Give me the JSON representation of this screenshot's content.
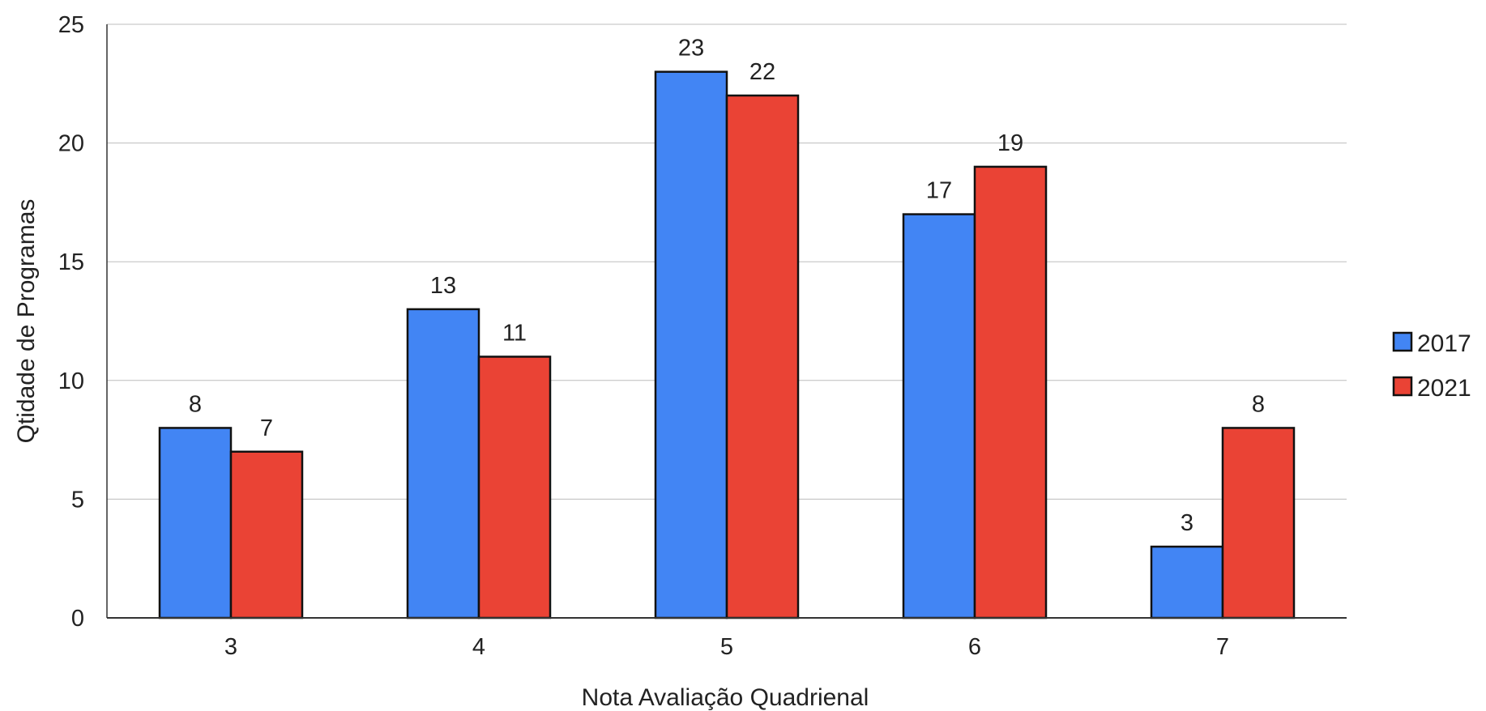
{
  "chart_data": {
    "type": "bar",
    "title": "",
    "xlabel": "Nota Avaliação Quadrienal",
    "ylabel": "Qtidade de Programas",
    "categories": [
      "3",
      "4",
      "5",
      "6",
      "7"
    ],
    "series": [
      {
        "name": "2017",
        "color": "#4285F4",
        "values": [
          8,
          13,
          23,
          17,
          3
        ]
      },
      {
        "name": "2021",
        "color": "#EA4335",
        "values": [
          7,
          11,
          22,
          19,
          8
        ]
      }
    ],
    "ylim": [
      0,
      25
    ],
    "yticks": [
      "0",
      "5",
      "10",
      "15",
      "20",
      "25"
    ],
    "grid": true,
    "legend": "right",
    "data_labels": true
  }
}
